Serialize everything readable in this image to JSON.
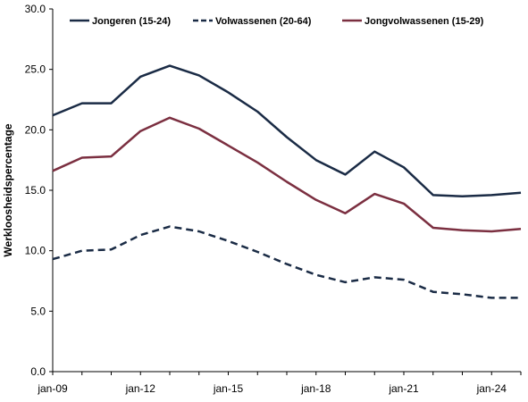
{
  "chart_data": {
    "type": "line",
    "ylabel": "Werkloosheidspercentage",
    "xlabel": "",
    "title": "",
    "ylim": [
      0,
      30
    ],
    "yticks": [
      "0.0",
      "5.0",
      "10.0",
      "15.0",
      "20.0",
      "25.0",
      "30.0"
    ],
    "xlim": [
      2009,
      2025
    ],
    "x_tick_labels": [
      "jan-09",
      "jan-12",
      "jan-15",
      "jan-18",
      "jan-21",
      "jan-24"
    ],
    "x": [
      2009,
      2010,
      2011,
      2012,
      2013,
      2014,
      2015,
      2016,
      2017,
      2018,
      2019,
      2020,
      2021,
      2022,
      2023,
      2024,
      2025
    ],
    "grid": false,
    "legend_position": "top",
    "series": [
      {
        "name": "Jongeren (15-24)",
        "color": "#1a2b45",
        "dash": "solid",
        "values": [
          21.2,
          22.2,
          22.2,
          24.4,
          25.3,
          24.5,
          23.1,
          21.5,
          19.4,
          17.5,
          16.3,
          18.2,
          16.9,
          14.6,
          14.5,
          14.6,
          14.8
        ]
      },
      {
        "name": "Volwassenen (20-64)",
        "color": "#1a2b45",
        "dash": "dashed",
        "values": [
          9.3,
          10.0,
          10.1,
          11.3,
          12.0,
          11.6,
          10.8,
          9.9,
          8.9,
          8.0,
          7.4,
          7.8,
          7.6,
          6.6,
          6.4,
          6.1,
          6.1
        ]
      },
      {
        "name": "Jongvolwassenen (15-29)",
        "color": "#7b2f40",
        "dash": "solid",
        "values": [
          16.6,
          17.7,
          17.8,
          19.9,
          21.0,
          20.1,
          18.7,
          17.3,
          15.7,
          14.2,
          13.1,
          14.7,
          13.9,
          11.9,
          11.7,
          11.6,
          11.8
        ]
      }
    ]
  }
}
